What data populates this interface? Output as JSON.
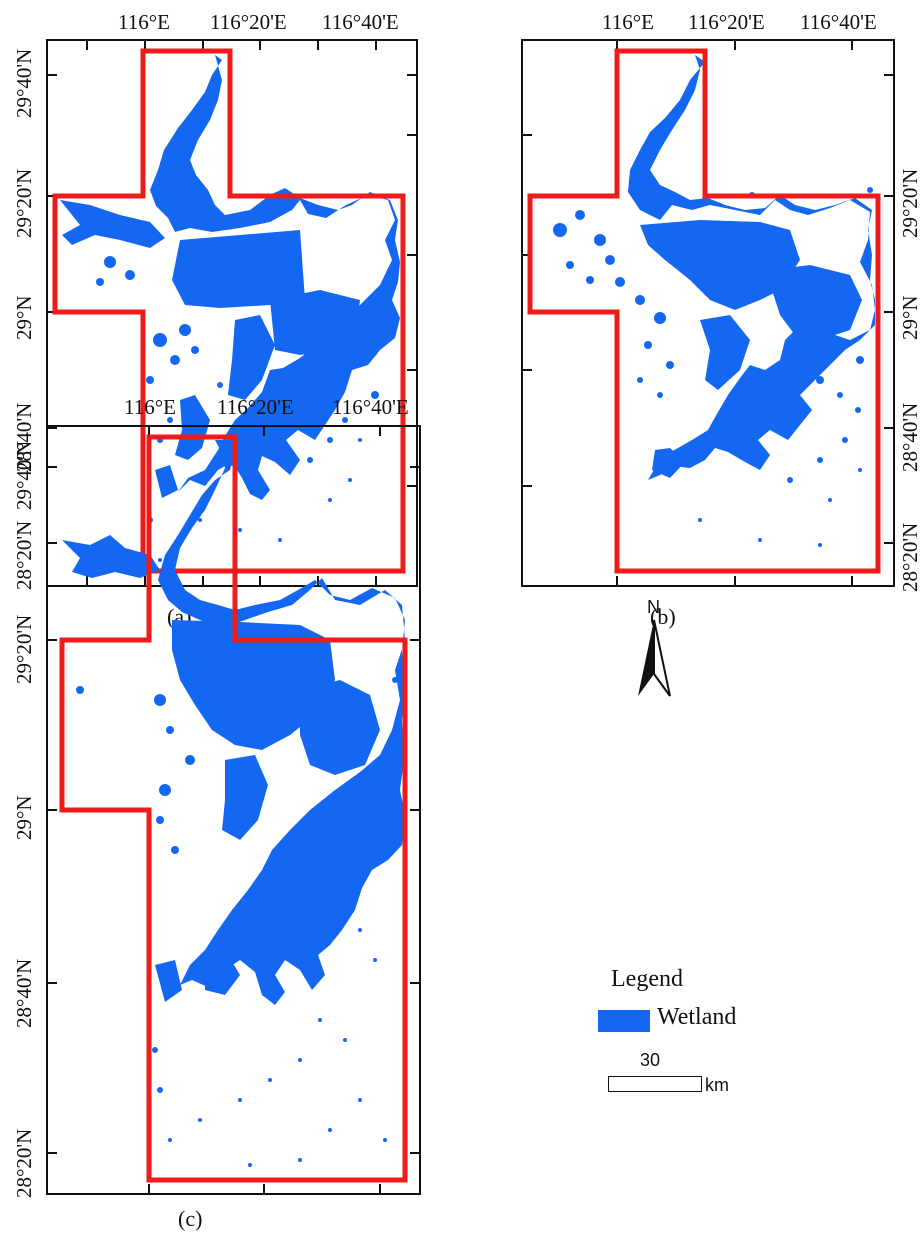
{
  "colors": {
    "wetland": "#1467f0",
    "boundary": "#ee1b1b",
    "frame": "#111111"
  },
  "panels": {
    "a": {
      "caption": "(a)",
      "top_labels": [
        "116°E",
        "116°20'E",
        "116°40'E"
      ],
      "side_labels": [
        "29°40'N",
        "29°20'N",
        "29°N",
        "28°40'N",
        "28°20'N"
      ]
    },
    "b": {
      "caption": "(b)",
      "top_labels": [
        "116°E",
        "116°20'E",
        "116°40'E"
      ],
      "side_labels": [
        "29°20'N",
        "29°N",
        "28°40'N",
        "28°20'N"
      ]
    },
    "c": {
      "caption": "(c)",
      "top_labels": [
        "116°E",
        "116°20'E",
        "116°40'E"
      ],
      "side_labels": [
        "29°40'N",
        "29°20'N",
        "29°N",
        "28°40'N",
        "28°20'N"
      ]
    }
  },
  "north_arrow": {
    "label": "N",
    "icon": "north-arrow-icon"
  },
  "legend": {
    "title": "Legend",
    "items": [
      {
        "label": "Wetland",
        "color": "#1467f0"
      }
    ]
  },
  "scale_bar": {
    "value": "30",
    "unit": "km"
  }
}
